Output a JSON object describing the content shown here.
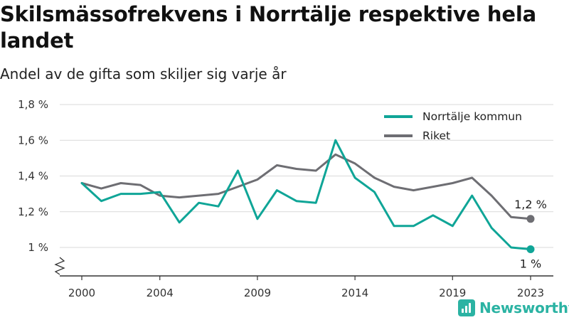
{
  "header": {
    "title": "Skilsmässofrekvens i Norrtälje respektive hela landet",
    "subtitle": "Andel av de gifta som skiljer sig varje år"
  },
  "brand": {
    "name": "Newsworthy",
    "icon": "bar-chart-logo-icon"
  },
  "colors": {
    "norrtalje": "#0fa597",
    "riket": "#6e6e73",
    "grid": "#d9d9d9",
    "axis": "#333333"
  },
  "chart_data": {
    "type": "line",
    "x": [
      2000,
      2001,
      2002,
      2003,
      2004,
      2005,
      2006,
      2007,
      2008,
      2009,
      2010,
      2011,
      2012,
      2013,
      2014,
      2015,
      2016,
      2017,
      2018,
      2019,
      2020,
      2021,
      2022,
      2023
    ],
    "x_ticks": [
      2000,
      2004,
      2009,
      2014,
      2019,
      2023
    ],
    "x_tick_labels": [
      "2000",
      "2004",
      "2009",
      "2014",
      "2019",
      "2023"
    ],
    "ylim": [
      1.0,
      1.8
    ],
    "y_ticks": [
      1.0,
      1.2,
      1.4,
      1.6,
      1.8
    ],
    "y_tick_labels": [
      "1 %",
      "1,2 %",
      "1,4 %",
      "1,6 %",
      "1,8 %"
    ],
    "y_axis_break": true,
    "grid": true,
    "legend_position": "top-right",
    "series": [
      {
        "name": "Norrtälje kommun",
        "color": "#0fa597",
        "values": [
          1.36,
          1.26,
          1.3,
          1.3,
          1.31,
          1.14,
          1.25,
          1.23,
          1.43,
          1.16,
          1.32,
          1.26,
          1.25,
          1.6,
          1.39,
          1.31,
          1.12,
          1.12,
          1.18,
          1.12,
          1.29,
          1.11,
          1.0,
          0.99
        ],
        "end_label": "1 %"
      },
      {
        "name": "Riket",
        "color": "#6e6e73",
        "values": [
          1.36,
          1.33,
          1.36,
          1.35,
          1.29,
          1.28,
          1.29,
          1.3,
          1.34,
          1.38,
          1.46,
          1.44,
          1.43,
          1.52,
          1.47,
          1.39,
          1.34,
          1.32,
          1.34,
          1.36,
          1.39,
          1.29,
          1.17,
          1.16
        ],
        "end_label": "1,2 %"
      }
    ]
  }
}
